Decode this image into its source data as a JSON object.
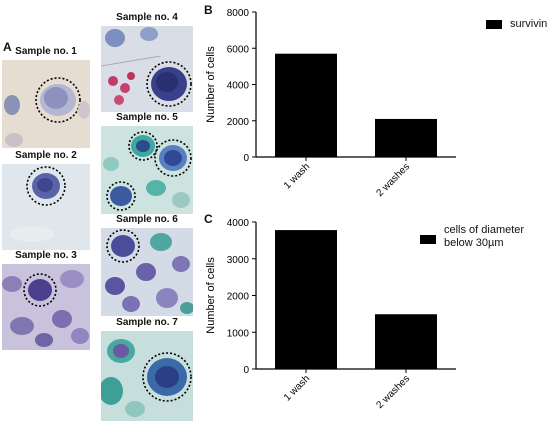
{
  "panel_a": {
    "letter": "A",
    "samples": [
      {
        "label": "Sample no. 1"
      },
      {
        "label": "Sample no. 2"
      },
      {
        "label": "Sample no. 3"
      },
      {
        "label": "Sample no. 4"
      },
      {
        "label": "Sample no. 5"
      },
      {
        "label": "Sample no. 6"
      },
      {
        "label": "Sample no. 7"
      }
    ]
  },
  "panel_b": {
    "letter": "B"
  },
  "panel_c": {
    "letter": "C"
  },
  "chart_data": [
    {
      "type": "bar",
      "panel": "B",
      "categories": [
        "1 wash",
        "2 washes"
      ],
      "values": [
        5700,
        2100
      ],
      "ylabel": "Number of cells",
      "xlabel": "",
      "ylim": [
        0,
        8000
      ],
      "yticks": [
        0,
        2000,
        4000,
        6000,
        8000
      ],
      "series": [
        {
          "name": "survivin",
          "values": [
            5700,
            2100
          ]
        }
      ],
      "legend": "survivin",
      "legend_position": "top-right",
      "bar_color": "#000000",
      "grid": false
    },
    {
      "type": "bar",
      "panel": "C",
      "categories": [
        "1 wash",
        "2 washes"
      ],
      "values": [
        3780,
        1490
      ],
      "ylabel": "Number of cells",
      "xlabel": "",
      "ylim": [
        0,
        4000
      ],
      "yticks": [
        0,
        1000,
        2000,
        3000,
        4000
      ],
      "series": [
        {
          "name": "cells of diameter\nbelow 30µm",
          "values": [
            3780,
            1490
          ]
        }
      ],
      "legend": "cells of diameter\nbelow 30µm",
      "legend_position": "top-right",
      "bar_color": "#000000",
      "grid": false
    }
  ]
}
